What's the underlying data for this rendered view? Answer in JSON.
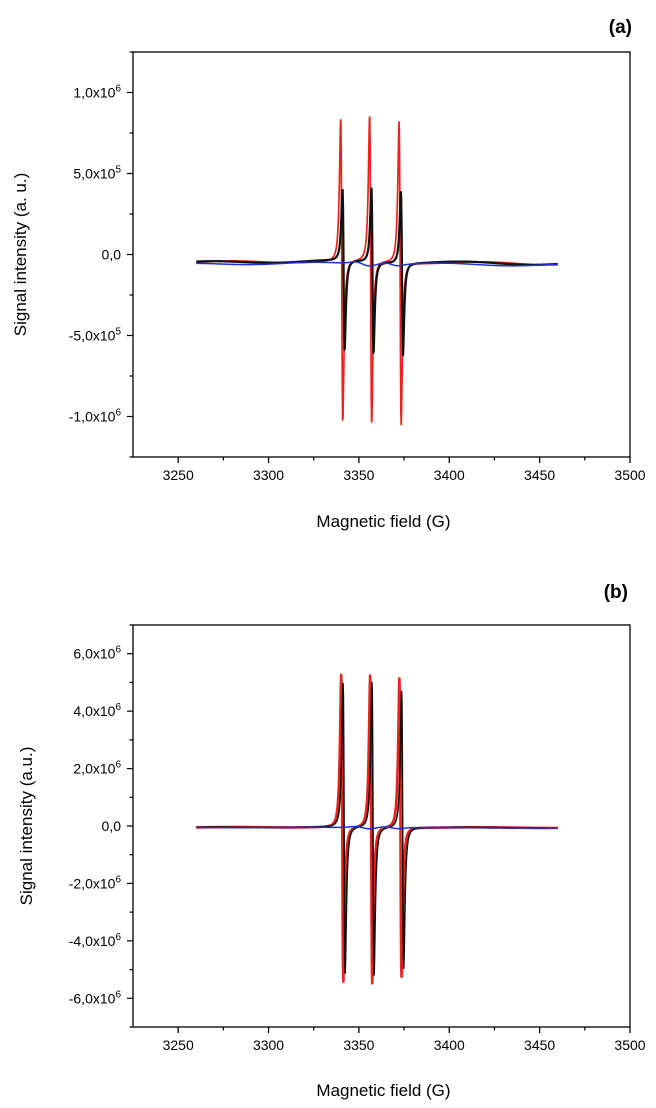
{
  "chart_data": [
    {
      "panel_label": "(a)",
      "type": "line",
      "xlabel": "Magnetic field (G)",
      "ylabel": "Signal intensity (a. u.)",
      "xlim": [
        3225,
        3500
      ],
      "ylim": [
        -1250000,
        1250000
      ],
      "x_ticks": [
        {
          "value": 3250,
          "label": "3250"
        },
        {
          "value": 3300,
          "label": "3300"
        },
        {
          "value": 3350,
          "label": "3350"
        },
        {
          "value": 3400,
          "label": "3400"
        },
        {
          "value": 3450,
          "label": "3450"
        },
        {
          "value": 3500,
          "label": "3500"
        }
      ],
      "y_ticks": [
        {
          "value": 1000000,
          "mant": "1,0x10",
          "exp": "6"
        },
        {
          "value": 500000,
          "mant": "5,0x10",
          "exp": "5"
        },
        {
          "value": 0,
          "mant": "0,0",
          "exp": ""
        },
        {
          "value": -500000,
          "mant": "-5,0x10",
          "exp": "5"
        },
        {
          "value": -1000000,
          "mant": "-1,0x10",
          "exp": "6"
        }
      ],
      "x_range": [
        3260,
        3460
      ],
      "series": [
        {
          "color": "#e8241c",
          "baseline": -50000,
          "wander": 15000,
          "peaks": [
            {
              "x": 3340.5,
              "max": 880000,
              "min": -1000000
            },
            {
              "x": 3356.5,
              "max": 900000,
              "min": -1010000
            },
            {
              "x": 3372.8,
              "max": 870000,
              "min": -1000000
            }
          ],
          "width": 1.7
        },
        {
          "color": "#111111",
          "baseline": -50000,
          "wander": 15000,
          "peaks": [
            {
              "x": 3341.5,
              "max": 440000,
              "min": -560000
            },
            {
              "x": 3357.5,
              "max": 460000,
              "min": -570000
            },
            {
              "x": 3373.8,
              "max": 440000,
              "min": -570000
            }
          ],
          "width": 2.2
        },
        {
          "color": "#1f2fe0",
          "baseline": -60000,
          "wander": 12000,
          "peaks": [],
          "bumps": [
            {
              "x": 3352,
              "amp": 18000
            },
            {
              "x": 3368,
              "amp": 15000
            }
          ],
          "width": 1.5
        }
      ],
      "grid": false,
      "legend": "none"
    },
    {
      "panel_label": "(b)",
      "type": "line",
      "xlabel": "Magnetic field (G)",
      "ylabel": "Signal intensity (a.u.)",
      "xlim": [
        3225,
        3500
      ],
      "ylim": [
        -7000000,
        7000000
      ],
      "x_ticks": [
        {
          "value": 3250,
          "label": "3250"
        },
        {
          "value": 3300,
          "label": "3300"
        },
        {
          "value": 3350,
          "label": "3350"
        },
        {
          "value": 3400,
          "label": "3400"
        },
        {
          "value": 3450,
          "label": "3450"
        },
        {
          "value": 3500,
          "label": "3500"
        }
      ],
      "y_ticks": [
        {
          "value": 6000000,
          "mant": "6,0x10",
          "exp": "6"
        },
        {
          "value": 4000000,
          "mant": "4,0x10",
          "exp": "6"
        },
        {
          "value": 2000000,
          "mant": "2,0x10",
          "exp": "6"
        },
        {
          "value": 0,
          "mant": "0,0",
          "exp": ""
        },
        {
          "value": -2000000,
          "mant": "-2,0x10",
          "exp": "6"
        },
        {
          "value": -4000000,
          "mant": "-4,0x10",
          "exp": "6"
        },
        {
          "value": -6000000,
          "mant": "-6,0x10",
          "exp": "6"
        }
      ],
      "x_range": [
        3260,
        3460
      ],
      "series": [
        {
          "color": "#e8241c",
          "baseline": -50000,
          "wander": 20000,
          "peaks": [
            {
              "x": 3340.8,
              "max": 5300000,
              "min": -5400000
            },
            {
              "x": 3356.8,
              "max": 5280000,
              "min": -5450000
            },
            {
              "x": 3373.0,
              "max": 5200000,
              "min": -5200000
            }
          ],
          "width": 2.6
        },
        {
          "color": "#111111",
          "baseline": -50000,
          "wander": 20000,
          "peaks": [
            {
              "x": 3341.8,
              "max": 5000000,
              "min": -5100000
            },
            {
              "x": 3357.8,
              "max": 5050000,
              "min": -5150000
            },
            {
              "x": 3374.2,
              "max": 4750000,
              "min": -4900000
            }
          ],
          "width": 1.6
        },
        {
          "color": "#1f2fe0",
          "baseline": -60000,
          "wander": 15000,
          "peaks": [],
          "bumps": [
            {
              "x": 3352,
              "amp": 60000
            },
            {
              "x": 3368,
              "amp": 50000
            }
          ],
          "width": 1.5
        }
      ],
      "grid": false,
      "legend": "none"
    }
  ]
}
